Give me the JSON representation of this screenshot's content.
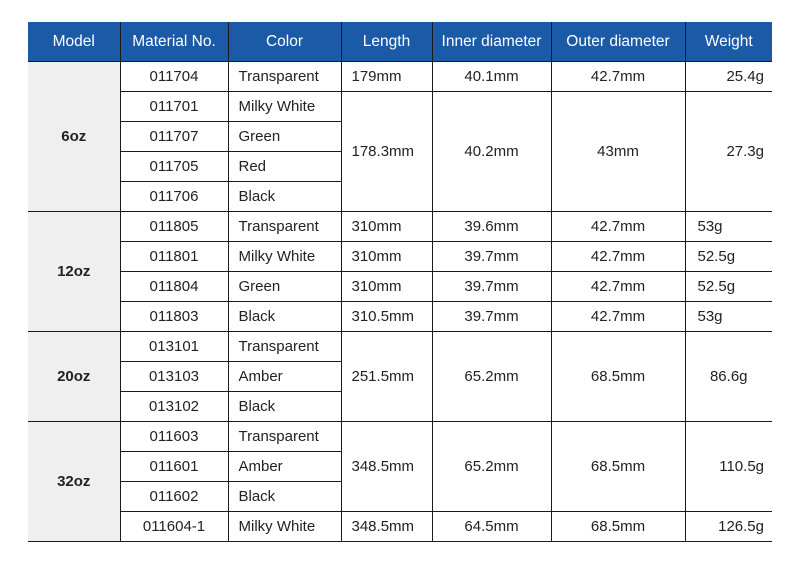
{
  "headers": [
    "Model",
    "Material No.",
    "Color",
    "Length",
    "Inner diameter",
    "Outer diameter",
    "Weight"
  ],
  "colors": {
    "header_bg": "#1b5aa7",
    "model_bg": "#efefef"
  },
  "groups": [
    {
      "model": "6oz",
      "rows": [
        [
          "011704",
          "Transparent"
        ],
        [
          "011701",
          "Milky White"
        ],
        [
          "011707",
          "Green"
        ],
        [
          "011705",
          "Red"
        ],
        [
          "011706",
          "Black"
        ]
      ],
      "length": [
        {
          "value": "179mm",
          "rows": 1
        },
        {
          "value": "178.3mm",
          "rows": 4
        }
      ],
      "inner": [
        {
          "value": "40.1mm",
          "rows": 1
        },
        {
          "value": "40.2mm",
          "rows": 4
        }
      ],
      "outer": [
        {
          "value": "42.7mm",
          "rows": 1
        },
        {
          "value": "43mm",
          "rows": 4
        }
      ],
      "weight": [
        {
          "value": "25.4g",
          "rows": 1
        },
        {
          "value": "27.3g",
          "rows": 4
        }
      ]
    },
    {
      "model": "12oz",
      "rows": [
        [
          "011805",
          "Transparent"
        ],
        [
          "011801",
          "Milky White"
        ],
        [
          "011804",
          "Green"
        ],
        [
          "011803",
          "Black"
        ]
      ],
      "length": [
        {
          "value": "310mm",
          "rows": 1
        },
        {
          "value": "310mm",
          "rows": 1
        },
        {
          "value": "310mm",
          "rows": 1
        },
        {
          "value": "310.5mm",
          "rows": 1
        }
      ],
      "inner": [
        {
          "value": "39.6mm",
          "rows": 1
        },
        {
          "value": "39.7mm",
          "rows": 1
        },
        {
          "value": "39.7mm",
          "rows": 1
        },
        {
          "value": "39.7mm",
          "rows": 1
        }
      ],
      "outer": [
        {
          "value": "42.7mm",
          "rows": 1
        },
        {
          "value": "42.7mm",
          "rows": 1
        },
        {
          "value": "42.7mm",
          "rows": 1
        },
        {
          "value": "42.7mm",
          "rows": 1
        }
      ],
      "weight": [
        {
          "value": "53g",
          "rows": 1
        },
        {
          "value": "52.5g",
          "rows": 1
        },
        {
          "value": "52.5g",
          "rows": 1
        },
        {
          "value": "53g",
          "rows": 1
        }
      ]
    },
    {
      "model": "20oz",
      "rows": [
        [
          "013101",
          "Transparent"
        ],
        [
          "013103",
          "Amber"
        ],
        [
          "013102",
          "Black"
        ]
      ],
      "length": [
        {
          "value": "251.5mm",
          "rows": 3
        }
      ],
      "inner": [
        {
          "value": "65.2mm",
          "rows": 3
        }
      ],
      "outer": [
        {
          "value": "68.5mm",
          "rows": 3
        }
      ],
      "weight": [
        {
          "value": "86.6g",
          "rows": 3
        }
      ]
    },
    {
      "model": "32oz",
      "rows": [
        [
          "011603",
          "Transparent"
        ],
        [
          "011601",
          "Amber"
        ],
        [
          "011602",
          "Black"
        ],
        [
          "011604-1",
          "Milky White"
        ]
      ],
      "length": [
        {
          "value": "348.5mm",
          "rows": 3
        },
        {
          "value": "348.5mm",
          "rows": 1
        }
      ],
      "inner": [
        {
          "value": "65.2mm",
          "rows": 3
        },
        {
          "value": "64.5mm",
          "rows": 1
        }
      ],
      "outer": [
        {
          "value": "68.5mm",
          "rows": 3
        },
        {
          "value": "68.5mm",
          "rows": 1
        }
      ],
      "weight": [
        {
          "value": "110.5g",
          "rows": 3
        },
        {
          "value": "126.5g",
          "rows": 1
        }
      ]
    }
  ]
}
